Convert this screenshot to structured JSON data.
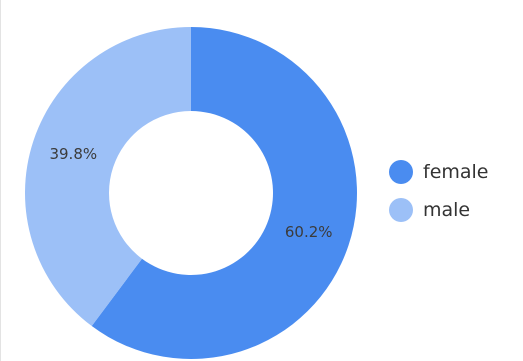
{
  "chart_data": {
    "type": "pie",
    "categories": [
      "female",
      "male"
    ],
    "values": [
      60.2,
      39.8
    ],
    "value_labels": [
      "60.2%",
      "39.8%"
    ],
    "colors": [
      "#4a8cf0",
      "#9cc0f7"
    ],
    "legend": [
      "female",
      "male"
    ],
    "legend_position": "right",
    "donut": true
  }
}
